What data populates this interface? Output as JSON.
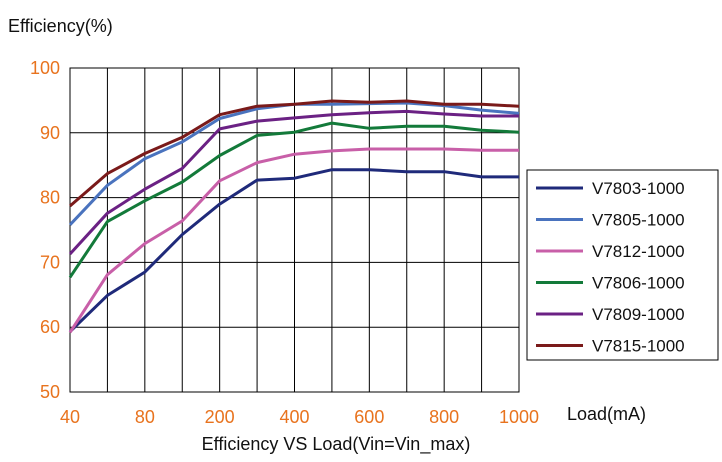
{
  "colors": {
    "tick_label": "#e8731e",
    "grid": "#000000",
    "text": "#111111"
  },
  "chart_data": {
    "type": "line",
    "ylabel": "Efficiency(%)",
    "xlabel": "Load(mA)",
    "caption": "Efficiency VS Load(Vin=Vin_max)",
    "ylim": [
      50,
      100
    ],
    "yticks": [
      "50",
      "60",
      "70",
      "80",
      "90",
      "100"
    ],
    "x_labeled_ticks": [
      "40",
      "80",
      "200",
      "400",
      "600",
      "800",
      "1000"
    ],
    "x_positions": [
      40,
      60,
      80,
      100,
      200,
      300,
      400,
      500,
      600,
      700,
      800,
      900,
      1000
    ],
    "grid": true,
    "legend_position": "right",
    "series": [
      {
        "name": "V7803-1000",
        "color": "#1f2a7a",
        "values": [
          59.3,
          64.9,
          68.5,
          74.3,
          79.0,
          82.7,
          83.0,
          84.3,
          84.3,
          84.0,
          84.0,
          83.2,
          83.2
        ]
      },
      {
        "name": "V7805-1000",
        "color": "#4a73be",
        "values": [
          75.8,
          81.9,
          86.0,
          88.6,
          92.2,
          93.7,
          94.4,
          94.4,
          94.5,
          94.6,
          94.2,
          93.5,
          93.0
        ]
      },
      {
        "name": "V7812-1000",
        "color": "#c85fa8",
        "values": [
          59.2,
          68.1,
          72.9,
          76.4,
          82.6,
          85.4,
          86.7,
          87.2,
          87.5,
          87.5,
          87.5,
          87.3,
          87.3
        ]
      },
      {
        "name": "V7806-1000",
        "color": "#137a3a",
        "values": [
          67.7,
          76.3,
          79.5,
          82.4,
          86.5,
          89.6,
          90.1,
          91.5,
          90.7,
          91.0,
          91.0,
          90.4,
          90.1
        ]
      },
      {
        "name": "V7809-1000",
        "color": "#6b2184",
        "values": [
          71.3,
          77.6,
          81.3,
          84.5,
          90.6,
          91.8,
          92.3,
          92.8,
          93.1,
          93.3,
          92.9,
          92.6,
          92.6
        ]
      },
      {
        "name": "V7815-1000",
        "color": "#7a1a1a",
        "values": [
          78.7,
          83.7,
          86.8,
          89.3,
          92.8,
          94.1,
          94.4,
          94.9,
          94.7,
          94.9,
          94.4,
          94.4,
          94.1
        ]
      }
    ]
  }
}
